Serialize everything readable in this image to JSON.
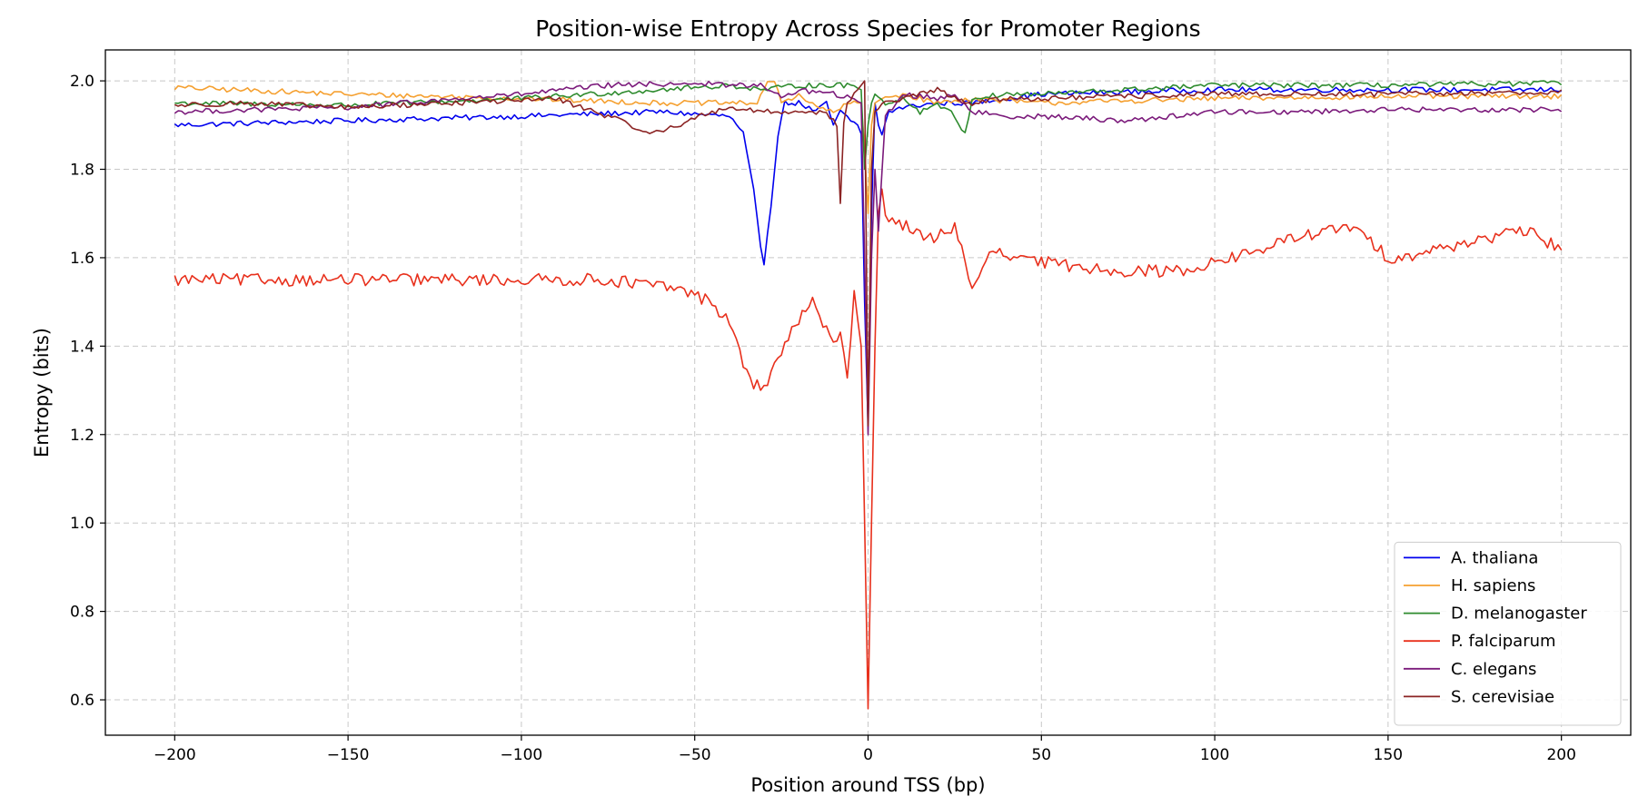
{
  "chart_data": {
    "type": "line",
    "title": "Position-wise Entropy Across Species for Promoter Regions",
    "xlabel": "Position around TSS (bp)",
    "ylabel": "Entropy (bits)",
    "xlim": [
      -220,
      220
    ],
    "ylim": [
      0.52,
      2.07
    ],
    "xticks": [
      -200,
      -150,
      -100,
      -50,
      0,
      50,
      100,
      150,
      200
    ],
    "xtick_labels": [
      "−200",
      "−150",
      "−100",
      "−50",
      "0",
      "50",
      "100",
      "150",
      "200"
    ],
    "yticks": [
      0.6,
      0.8,
      1.0,
      1.2,
      1.4,
      1.6,
      1.8,
      2.0
    ],
    "ytick_labels": [
      "0.6",
      "0.8",
      "1.0",
      "1.2",
      "1.4",
      "1.6",
      "1.8",
      "2.0"
    ],
    "grid": true,
    "legend_position": "bottom-right",
    "series": [
      {
        "name": "A. thaliana",
        "color": "#0000ee",
        "x": [
          -200,
          -150,
          -100,
          -60,
          -40,
          -36,
          -33,
          -31,
          -30,
          -28,
          -26,
          -24,
          -20,
          -15,
          -12,
          -10,
          -8,
          -5,
          -3,
          -2,
          -1,
          0,
          1,
          2,
          3,
          4,
          6,
          10,
          20,
          30,
          50,
          100,
          150,
          200
        ],
        "y": [
          1.9,
          1.91,
          1.92,
          1.93,
          1.92,
          1.88,
          1.75,
          1.62,
          1.59,
          1.72,
          1.88,
          1.95,
          1.95,
          1.93,
          1.95,
          1.9,
          1.93,
          1.91,
          1.9,
          1.88,
          1.5,
          1.22,
          1.7,
          1.95,
          1.9,
          1.88,
          1.93,
          1.94,
          1.95,
          1.95,
          1.97,
          1.98,
          1.98,
          1.98
        ]
      },
      {
        "name": "H. sapiens",
        "color": "#f5a030",
        "x": [
          -200,
          -150,
          -100,
          -60,
          -40,
          -32,
          -29,
          -27,
          -25,
          -20,
          -15,
          -10,
          -5,
          -2,
          -1,
          0,
          1,
          2,
          4,
          10,
          20,
          30,
          50,
          100,
          150,
          200
        ],
        "y": [
          1.985,
          1.97,
          1.96,
          1.95,
          1.95,
          1.95,
          2.0,
          2.0,
          1.95,
          1.97,
          1.94,
          1.93,
          1.95,
          1.95,
          1.85,
          1.7,
          1.9,
          1.95,
          1.96,
          1.97,
          1.95,
          1.96,
          1.95,
          1.96,
          1.965,
          1.965
        ]
      },
      {
        "name": "D. melanogaster",
        "color": "#2e8b2e",
        "x": [
          -200,
          -150,
          -100,
          -60,
          -40,
          -30,
          -20,
          -10,
          -5,
          -2,
          -1,
          0,
          1,
          2,
          5,
          10,
          15,
          20,
          25,
          28,
          30,
          40,
          50,
          100,
          150,
          200
        ],
        "y": [
          1.95,
          1.945,
          1.96,
          1.98,
          1.99,
          1.98,
          1.99,
          1.99,
          1.99,
          1.98,
          1.8,
          1.9,
          1.95,
          1.97,
          1.95,
          1.96,
          1.93,
          1.95,
          1.92,
          1.88,
          1.96,
          1.97,
          1.97,
          1.99,
          1.99,
          1.995
        ]
      },
      {
        "name": "P. falciparum",
        "color": "#e8301c",
        "x": [
          -200,
          -175,
          -150,
          -125,
          -100,
          -75,
          -55,
          -45,
          -40,
          -37,
          -35,
          -33,
          -31,
          -30,
          -28,
          -25,
          -22,
          -19,
          -16,
          -13,
          -10,
          -8,
          -6,
          -4,
          -2,
          -1,
          0,
          1,
          2,
          3,
          4,
          5,
          8,
          12,
          16,
          20,
          25,
          28,
          30,
          33,
          36,
          40,
          50,
          60,
          75,
          90,
          100,
          110,
          125,
          140,
          150,
          160,
          175,
          190,
          200
        ],
        "y": [
          1.55,
          1.55,
          1.55,
          1.55,
          1.55,
          1.55,
          1.53,
          1.5,
          1.45,
          1.39,
          1.34,
          1.31,
          1.31,
          1.3,
          1.34,
          1.39,
          1.43,
          1.47,
          1.5,
          1.44,
          1.42,
          1.43,
          1.33,
          1.52,
          1.4,
          1.0,
          0.58,
          1.0,
          1.4,
          1.7,
          1.75,
          1.7,
          1.68,
          1.67,
          1.64,
          1.65,
          1.67,
          1.6,
          1.52,
          1.57,
          1.62,
          1.6,
          1.59,
          1.58,
          1.57,
          1.57,
          1.59,
          1.61,
          1.65,
          1.67,
          1.6,
          1.61,
          1.64,
          1.66,
          1.62
        ]
      },
      {
        "name": "C. elegans",
        "color": "#7b1a7b",
        "x": [
          -200,
          -150,
          -100,
          -75,
          -50,
          -40,
          -30,
          -25,
          -20,
          -10,
          -5,
          -2,
          -1,
          0,
          1,
          2,
          3,
          5,
          10,
          20,
          25,
          30,
          40,
          50,
          75,
          100,
          125,
          150,
          175,
          200
        ],
        "y": [
          1.93,
          1.94,
          1.97,
          1.99,
          1.995,
          1.99,
          1.99,
          1.96,
          1.98,
          1.97,
          1.96,
          1.95,
          1.6,
          1.2,
          1.6,
          1.8,
          1.66,
          1.92,
          1.97,
          1.96,
          1.97,
          1.93,
          1.92,
          1.92,
          1.91,
          1.93,
          1.93,
          1.935,
          1.935,
          1.935
        ]
      },
      {
        "name": "S. cerevisiae",
        "color": "#8b2323",
        "x": [
          -200,
          -180,
          -150,
          -120,
          -90,
          -75,
          -62,
          -55,
          -45,
          -40,
          -30,
          -20,
          -12,
          -9,
          -8,
          -7,
          -6,
          -4,
          -2,
          -1,
          0,
          1,
          2,
          5,
          10,
          20,
          25,
          30,
          40,
          50,
          100,
          150,
          200
        ],
        "y": [
          1.945,
          1.95,
          1.94,
          1.95,
          1.96,
          1.92,
          1.88,
          1.9,
          1.93,
          1.94,
          1.93,
          1.93,
          1.93,
          1.9,
          1.72,
          1.9,
          1.95,
          1.97,
          1.99,
          2.0,
          1.22,
          1.8,
          1.93,
          1.95,
          1.96,
          1.98,
          1.96,
          1.95,
          1.96,
          1.96,
          1.97,
          1.97,
          1.975
        ]
      }
    ]
  }
}
